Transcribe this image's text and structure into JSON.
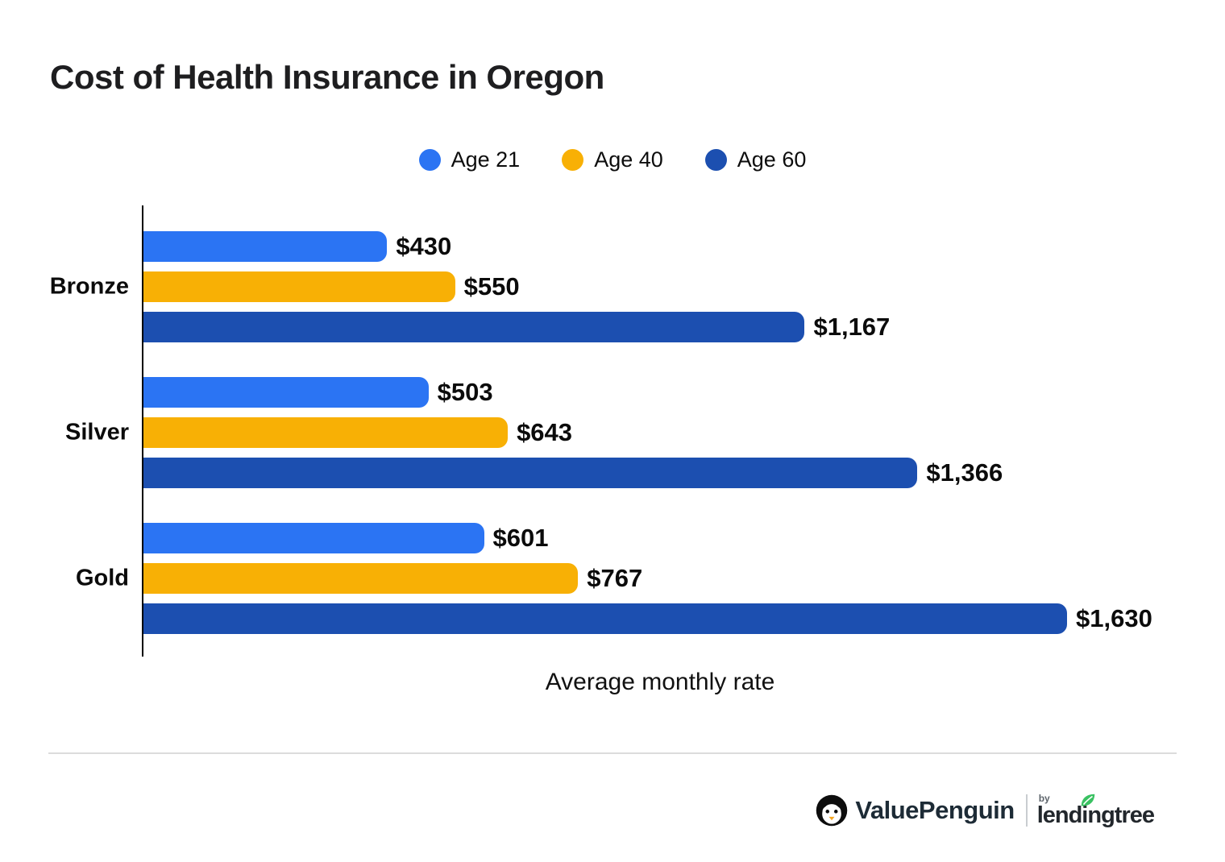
{
  "title": "Cost of Health Insurance in Oregon",
  "colors": {
    "age21_blue": "#2b74f3",
    "age40_gold": "#f8b005",
    "age60_navy": "#1c4fb0",
    "text": "#0b0b0b",
    "divider_gray": "#dcdcdc",
    "leaf_green": "#3ac162"
  },
  "chart_data": {
    "type": "bar",
    "orientation": "horizontal",
    "title": "Cost of Health Insurance in Oregon",
    "categories": [
      "Bronze",
      "Silver",
      "Gold"
    ],
    "series": [
      {
        "name": "Age 21",
        "color": "#2b74f3",
        "values": [
          430,
          503,
          601
        ],
        "labels": [
          "$430",
          "$503",
          "$601"
        ]
      },
      {
        "name": "Age 40",
        "color": "#f8b005",
        "values": [
          550,
          643,
          767
        ],
        "labels": [
          "$550",
          "$643",
          "$767"
        ]
      },
      {
        "name": "Age 60",
        "color": "#1c4fb0",
        "values": [
          1167,
          1366,
          1630
        ],
        "labels": [
          "$1,167",
          "$1,366",
          "$1,630"
        ]
      }
    ],
    "xlabel": "Average monthly rate",
    "ylabel": "",
    "xlim": [
      0,
      1630
    ],
    "grid": false,
    "legend_position": "top",
    "bar_value_labels": true
  },
  "footer": {
    "brand": "ValuePenguin",
    "by_label": "by",
    "partner_brand": "lendingtree"
  }
}
